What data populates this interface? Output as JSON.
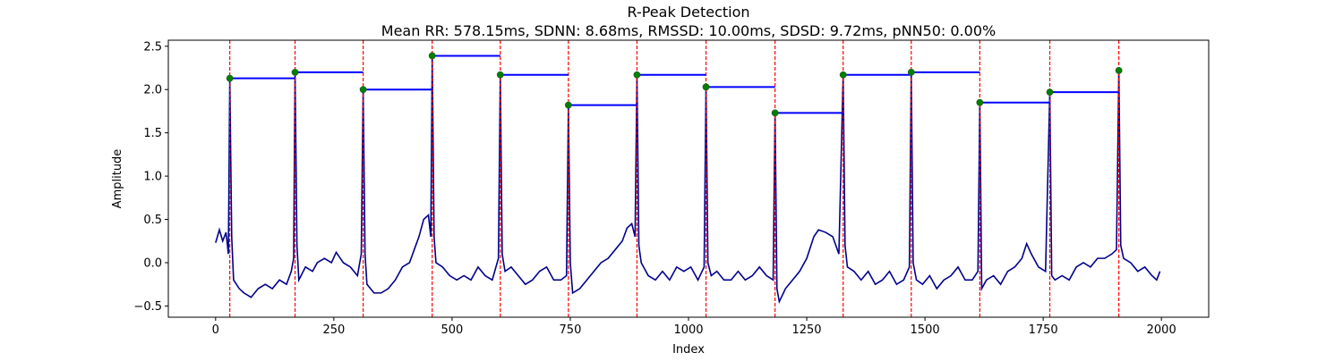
{
  "chart_data": {
    "type": "line",
    "title": "R-Peak Detection",
    "subtitle": "Mean RR: 578.15ms, SDNN: 8.68ms, RMSSD: 10.00ms, SDSD: 9.72ms, pNN50: 0.00%",
    "x_label": "Index",
    "y_label": "Amplitude",
    "xlim": [
      -100,
      2100
    ],
    "ylim": [
      -0.63,
      2.57
    ],
    "xticks": [
      0,
      250,
      500,
      750,
      1000,
      1250,
      1500,
      1750,
      2000
    ],
    "yticks": [
      {
        "value": -0.5,
        "label": "−0.5"
      },
      {
        "value": 0,
        "label": "0.0"
      },
      0.5,
      {
        "value": 1,
        "label": "1.0"
      },
      1.5,
      {
        "value": 2,
        "label": "2.0"
      },
      2.5
    ],
    "signal": {
      "color": "#00008b",
      "x": [
        0,
        8,
        15,
        22,
        27,
        30,
        34,
        38,
        50,
        60,
        75,
        90,
        105,
        120,
        135,
        150,
        160,
        165,
        168,
        172,
        176,
        190,
        205,
        215,
        230,
        245,
        255,
        270,
        285,
        300,
        308,
        312,
        316,
        320,
        335,
        350,
        365,
        380,
        395,
        410,
        420,
        430,
        440,
        450,
        455,
        458,
        462,
        466,
        480,
        495,
        510,
        525,
        540,
        555,
        570,
        585,
        598,
        602,
        606,
        612,
        625,
        640,
        655,
        670,
        685,
        700,
        715,
        730,
        742,
        746,
        750,
        755,
        770,
        785,
        800,
        815,
        830,
        845,
        860,
        870,
        880,
        887,
        891,
        895,
        900,
        915,
        930,
        945,
        960,
        975,
        990,
        1005,
        1020,
        1033,
        1037,
        1041,
        1048,
        1060,
        1075,
        1090,
        1105,
        1120,
        1135,
        1150,
        1165,
        1179,
        1183,
        1187,
        1192,
        1205,
        1220,
        1235,
        1250,
        1265,
        1275,
        1290,
        1305,
        1318,
        1327,
        1331,
        1336,
        1350,
        1365,
        1380,
        1395,
        1410,
        1425,
        1440,
        1455,
        1467,
        1471,
        1475,
        1482,
        1495,
        1510,
        1525,
        1540,
        1555,
        1570,
        1585,
        1600,
        1612,
        1616,
        1620,
        1630,
        1645,
        1660,
        1675,
        1690,
        1705,
        1715,
        1725,
        1740,
        1755,
        1764,
        1768,
        1775,
        1790,
        1805,
        1820,
        1835,
        1850,
        1865,
        1880,
        1895,
        1905,
        1910,
        1914,
        1920,
        1935,
        1950,
        1965,
        1980,
        1990,
        1997
      ],
      "values": [
        0.23,
        0.38,
        0.25,
        0.35,
        0.1,
        2.13,
        0.3,
        -0.2,
        -0.3,
        -0.35,
        -0.4,
        -0.3,
        -0.25,
        -0.3,
        -0.2,
        -0.25,
        -0.1,
        0.05,
        2.2,
        0.2,
        -0.2,
        -0.05,
        -0.1,
        0.0,
        0.05,
        0.0,
        0.12,
        0.0,
        -0.05,
        -0.15,
        0.1,
        2.0,
        0.1,
        -0.25,
        -0.35,
        -0.35,
        -0.3,
        -0.2,
        -0.05,
        0.0,
        0.15,
        0.3,
        0.5,
        0.55,
        0.3,
        2.39,
        0.3,
        0.0,
        -0.05,
        -0.15,
        -0.2,
        -0.15,
        -0.2,
        -0.05,
        -0.15,
        -0.2,
        0.05,
        2.17,
        0.1,
        -0.1,
        -0.05,
        -0.15,
        -0.25,
        -0.2,
        -0.1,
        -0.05,
        -0.2,
        -0.2,
        -0.15,
        1.82,
        0.0,
        -0.35,
        -0.3,
        -0.2,
        -0.1,
        0.0,
        0.05,
        0.15,
        0.25,
        0.4,
        0.45,
        0.3,
        2.17,
        0.2,
        0.0,
        -0.15,
        -0.2,
        -0.1,
        -0.2,
        -0.05,
        -0.1,
        -0.05,
        -0.2,
        -0.05,
        2.03,
        0.0,
        -0.15,
        -0.1,
        -0.2,
        -0.2,
        -0.1,
        -0.2,
        -0.15,
        -0.05,
        -0.15,
        -0.2,
        1.73,
        -0.3,
        -0.45,
        -0.3,
        -0.2,
        -0.1,
        0.05,
        0.3,
        0.38,
        0.35,
        0.3,
        0.1,
        2.17,
        0.2,
        -0.05,
        -0.1,
        -0.2,
        -0.1,
        -0.25,
        -0.2,
        -0.1,
        -0.25,
        -0.2,
        -0.05,
        2.2,
        0.0,
        -0.2,
        -0.25,
        -0.15,
        -0.3,
        -0.2,
        -0.15,
        -0.05,
        -0.2,
        -0.2,
        -0.1,
        1.85,
        -0.3,
        -0.2,
        -0.15,
        -0.25,
        -0.1,
        -0.05,
        0.05,
        0.22,
        0.1,
        -0.05,
        -0.1,
        1.97,
        -0.15,
        -0.2,
        -0.15,
        -0.2,
        -0.05,
        0.0,
        -0.05,
        0.05,
        0.05,
        0.1,
        0.15,
        2.22,
        0.2,
        0.05,
        0.0,
        -0.1,
        -0.05,
        -0.15,
        -0.2,
        -0.1
      ]
    },
    "r_peaks": {
      "color": "#008000",
      "line_color": "#ff0000",
      "rr_color": "#0000ff",
      "x": [
        30,
        168,
        312,
        458,
        602,
        746,
        891,
        1037,
        1183,
        1327,
        1471,
        1616,
        1764,
        1910
      ],
      "values": [
        2.13,
        2.2,
        2.0,
        2.39,
        2.17,
        1.82,
        2.17,
        2.03,
        1.73,
        2.17,
        2.2,
        1.85,
        1.97,
        2.22
      ]
    }
  }
}
